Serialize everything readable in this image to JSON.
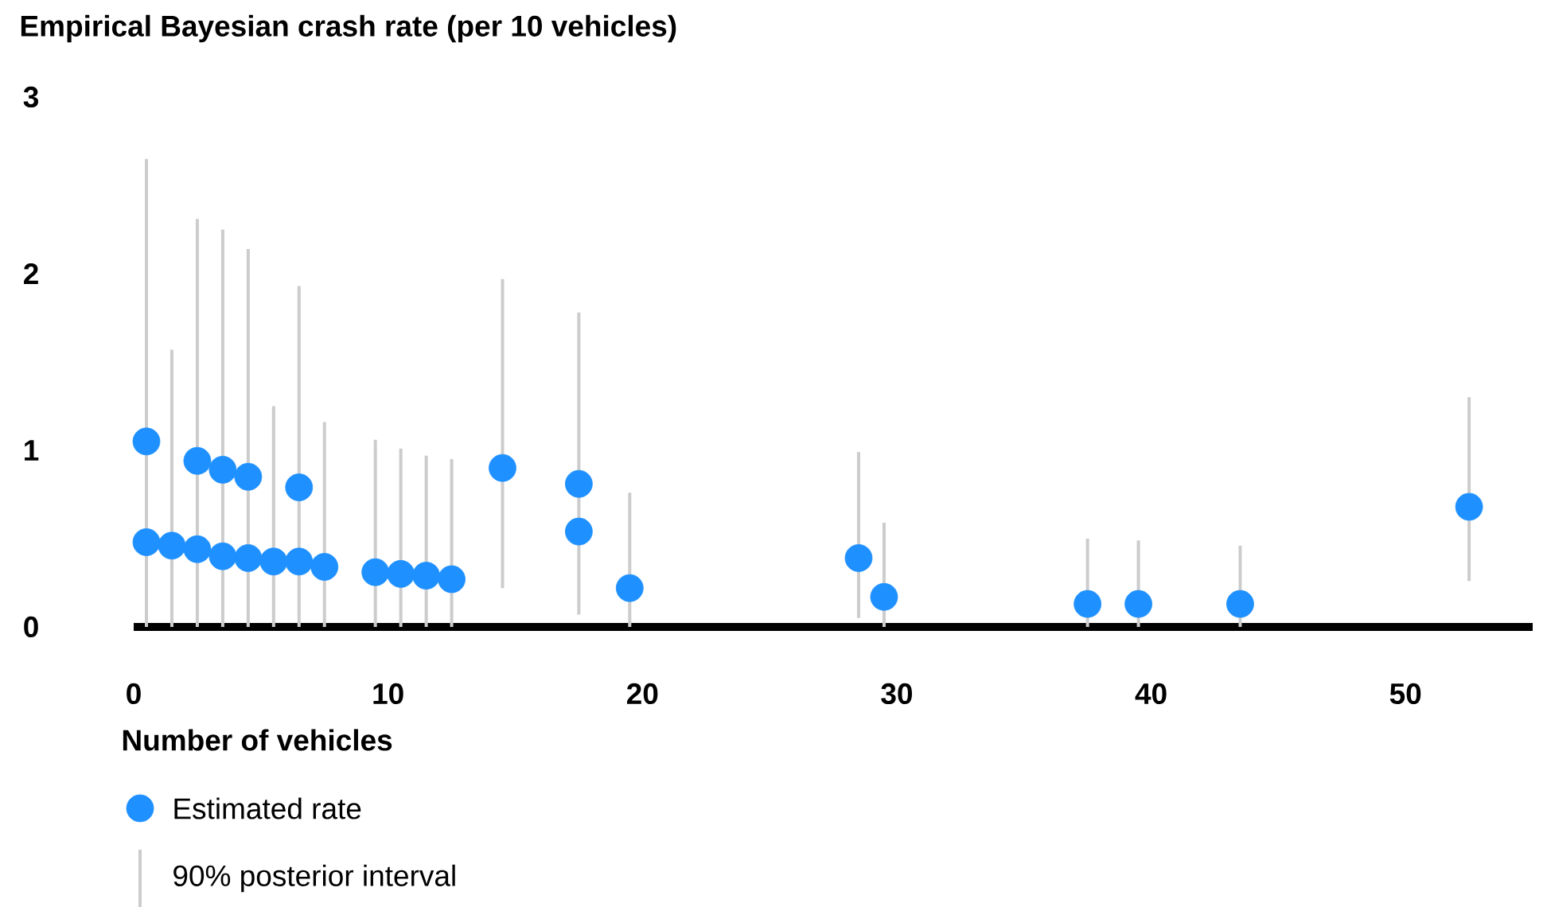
{
  "chart_data": {
    "type": "scatter",
    "ylabel": "Empirical Bayesian crash rate (per 10 vehicles)",
    "xlabel": "Number of vehicles",
    "xlim": [
      0,
      55
    ],
    "xticks": [
      0,
      10,
      20,
      30,
      40,
      50
    ],
    "ylim": [
      0,
      3
    ],
    "yticks": [
      0,
      1,
      2,
      3
    ],
    "legend": "bottom",
    "marker": "circle",
    "series": [
      {
        "name": "Estimated rate",
        "color": "#1e90ff",
        "x": [
          0.5,
          0.5,
          1.5,
          2.5,
          2.5,
          3.5,
          3.5,
          4.5,
          4.5,
          5.5,
          6.5,
          6.5,
          7.5,
          9.5,
          10.5,
          11.5,
          12.5,
          14.5,
          17.5,
          17.5,
          19.5,
          28.5,
          29.5,
          37.5,
          39.5,
          43.5,
          52.5
        ],
        "values": [
          1.05,
          0.48,
          0.46,
          0.94,
          0.44,
          0.89,
          0.4,
          0.85,
          0.39,
          0.37,
          0.79,
          0.37,
          0.34,
          0.31,
          0.3,
          0.29,
          0.27,
          0.9,
          0.81,
          0.54,
          0.22,
          0.39,
          0.17,
          0.13,
          0.13,
          0.13,
          0.68
        ]
      },
      {
        "name": "90% posterior interval",
        "type": "bar",
        "color": "#cccccc",
        "x": [
          0.5,
          1.5,
          2.5,
          3.5,
          4.5,
          5.5,
          6.5,
          7.5,
          9.5,
          10.5,
          11.5,
          12.5,
          14.5,
          17.5,
          19.5,
          28.5,
          29.5,
          37.5,
          39.5,
          43.5,
          52.5
        ],
        "base": [
          0,
          0,
          0,
          0,
          0,
          0,
          0,
          0,
          0,
          0,
          0,
          0,
          0.22,
          0.07,
          0,
          0.05,
          0,
          0,
          0,
          0,
          0.26
        ],
        "values": [
          2.65,
          1.57,
          2.31,
          2.25,
          2.14,
          1.25,
          1.93,
          1.16,
          1.06,
          1.01,
          0.97,
          0.95,
          1.75,
          1.71,
          0.76,
          0.94,
          0.59,
          0.5,
          0.49,
          0.46,
          1.04
        ]
      }
    ]
  }
}
